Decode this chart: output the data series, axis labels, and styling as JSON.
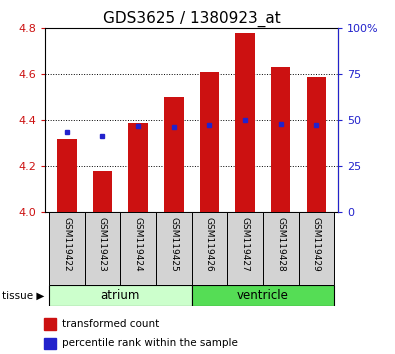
{
  "title": "GDS3625 / 1380923_at",
  "samples": [
    "GSM119422",
    "GSM119423",
    "GSM119424",
    "GSM119425",
    "GSM119426",
    "GSM119427",
    "GSM119428",
    "GSM119429"
  ],
  "transformed_count": [
    4.32,
    4.18,
    4.39,
    4.5,
    4.61,
    4.78,
    4.63,
    4.59
  ],
  "percentile_rank_val": [
    4.35,
    4.33,
    4.375,
    4.37,
    4.38,
    4.4,
    4.385,
    4.38
  ],
  "ylim": [
    4.0,
    4.8
  ],
  "yticks": [
    4.0,
    4.2,
    4.4,
    4.6,
    4.8
  ],
  "right_yticks": [
    0,
    25,
    50,
    75,
    100
  ],
  "bar_color": "#cc1111",
  "dot_color": "#2222cc",
  "bar_width": 0.55,
  "background_color": "#ffffff",
  "title_fontsize": 11,
  "axis_label_color_left": "#cc1111",
  "axis_label_color_right": "#2222cc",
  "atrium_color": "#ccffcc",
  "ventricle_color": "#55dd55",
  "sample_box_color": "#d3d3d3"
}
